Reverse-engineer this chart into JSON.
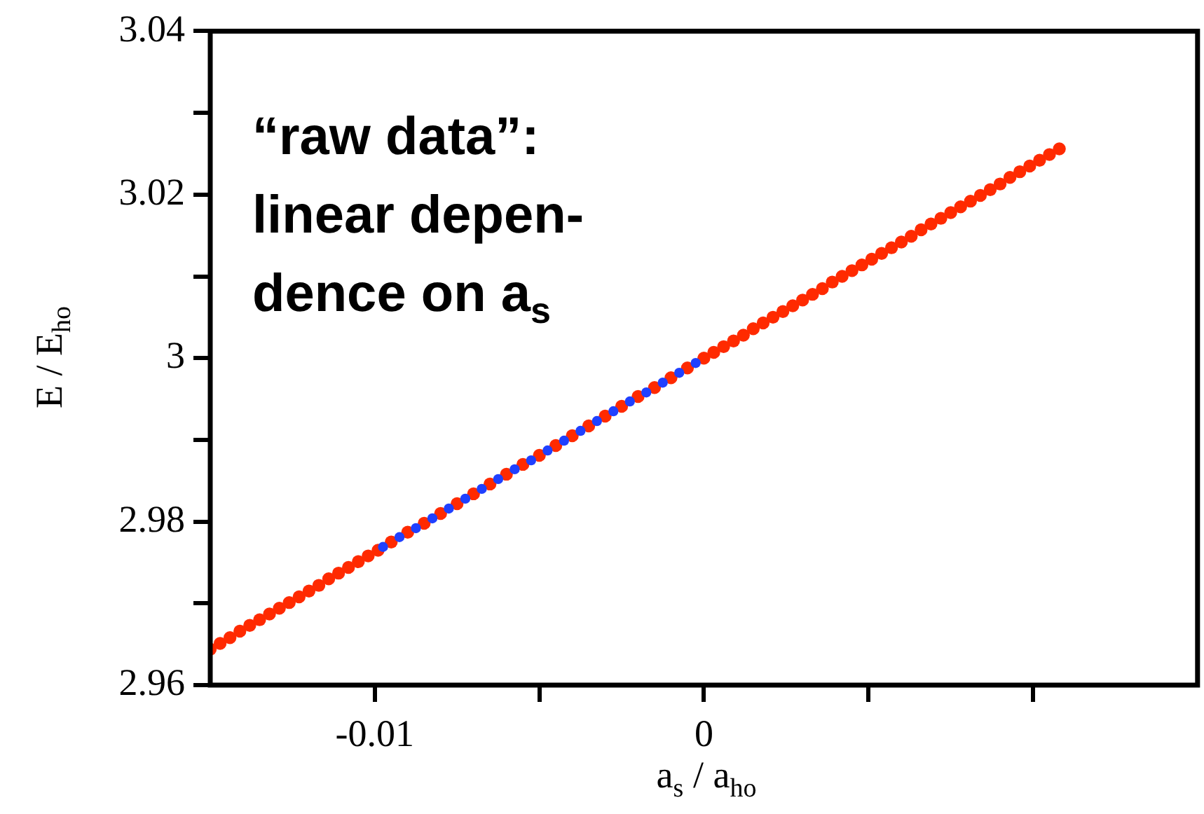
{
  "chart_data": {
    "type": "scatter",
    "xlabel": "a$_{s}$ / a$_{ho}$",
    "ylabel": "E / E$_{ho}$",
    "annotations": [
      "“raw data”:\nlinear depen-\ndence on a$_{s}$"
    ],
    "xlim": [
      -0.015,
      0.015
    ],
    "ylim": [
      2.96,
      3.04
    ],
    "marker": "circle",
    "xticks": [
      -0.01,
      {
        "value": -0.005,
        "label": null
      },
      0,
      {
        "value": 0.005,
        "label": null
      },
      {
        "value": 0.01,
        "label": null
      }
    ],
    "yticks": [
      2.96,
      {
        "value": 2.97,
        "label": null
      },
      2.98,
      {
        "value": 2.99,
        "label": null
      },
      3,
      {
        "value": 3.01,
        "label": null
      },
      3.02,
      {
        "value": 3.03,
        "label": null
      },
      3.04
    ],
    "series": [
      {
        "color": "#2040ff",
        "x": [
          -0.00975,
          -0.00925,
          -0.00875,
          -0.00825,
          -0.00775,
          -0.00725,
          -0.00675,
          -0.00625,
          -0.00575,
          -0.00525,
          -0.00475,
          -0.00425,
          -0.00375,
          -0.00325,
          -0.00275,
          -0.00225,
          -0.00175,
          -0.00125,
          -0.00075,
          -0.00025
        ],
        "values": [
          2.9769,
          2.9781,
          2.9792,
          2.9804,
          2.9816,
          2.9828,
          2.984,
          2.9852,
          2.9864,
          2.9875,
          2.9887,
          2.9899,
          2.9911,
          2.9923,
          2.9935,
          2.9947,
          2.9958,
          2.997,
          2.9982,
          2.9994
        ]
      },
      {
        "color": "#ff2a00",
        "x": [
          -0.015,
          -0.0147,
          -0.0144,
          -0.0141,
          -0.0138,
          -0.0135,
          -0.0132,
          -0.0129,
          -0.0126,
          -0.0123,
          -0.012,
          -0.0117,
          -0.0114,
          -0.0111,
          -0.0108,
          -0.0105,
          -0.0102,
          -0.0099,
          -0.0095,
          -0.009,
          -0.0085,
          -0.008,
          -0.0075,
          -0.007,
          -0.0065,
          -0.006,
          -0.0055,
          -0.005,
          -0.0045,
          -0.004,
          -0.0035,
          -0.003,
          -0.0025,
          -0.002,
          -0.0015,
          -0.001,
          -0.0005,
          0,
          0.0003,
          0.0006,
          0.0009,
          0.0012,
          0.0015,
          0.0018,
          0.0021,
          0.0024,
          0.0027,
          0.003,
          0.0033,
          0.0036,
          0.0039,
          0.0042,
          0.0045,
          0.0048,
          0.0051,
          0.0054,
          0.0057,
          0.006,
          0.0063,
          0.0066,
          0.0069,
          0.0072,
          0.0075,
          0.0078,
          0.0081,
          0.0084,
          0.0087,
          0.009,
          0.0093,
          0.0096,
          0.0099,
          0.0102,
          0.0105,
          0.0108
        ],
        "values": [
          2.9644,
          2.9651,
          2.9658,
          2.9666,
          2.9673,
          2.968,
          2.9687,
          2.9694,
          2.9701,
          2.9708,
          2.9715,
          2.9722,
          2.973,
          2.9737,
          2.9744,
          2.9751,
          2.9758,
          2.9765,
          2.9775,
          2.9787,
          2.9798,
          2.981,
          2.9822,
          2.9834,
          2.9846,
          2.9858,
          2.987,
          2.9881,
          2.9893,
          2.9905,
          2.9917,
          2.9929,
          2.9941,
          2.9953,
          2.9964,
          2.9976,
          2.9988,
          3.0,
          3.0007,
          3.0014,
          3.0021,
          3.0028,
          3.0036,
          3.0043,
          3.005,
          3.0057,
          3.0064,
          3.0071,
          3.0078,
          3.0085,
          3.0093,
          3.01,
          3.0107,
          3.0114,
          3.0121,
          3.0128,
          3.0135,
          3.0142,
          3.0149,
          3.0157,
          3.0164,
          3.0171,
          3.0178,
          3.0185,
          3.0192,
          3.0199,
          3.0206,
          3.0213,
          3.0221,
          3.0228,
          3.0235,
          3.0242,
          3.0249,
          3.0256
        ]
      }
    ]
  }
}
